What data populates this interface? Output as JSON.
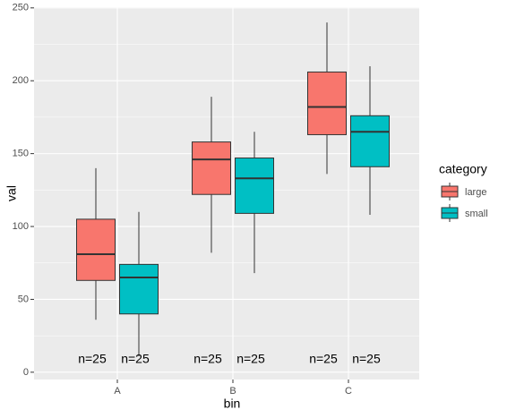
{
  "chart_data": {
    "type": "boxplot",
    "x_label": "bin",
    "y_label": "val",
    "categories": [
      "A",
      "B",
      "C"
    ],
    "ylim": [
      -5,
      250.5
    ],
    "yticks": [
      0,
      50,
      100,
      150,
      200,
      250
    ],
    "grid": true,
    "legend_title": "category",
    "legend_position": "right",
    "series": [
      {
        "name": "large",
        "color": "#F8766D",
        "boxes": [
          {
            "min": 36,
            "q1": 63,
            "median": 81,
            "q3": 105,
            "max": 140
          },
          {
            "min": 82,
            "q1": 122,
            "median": 146,
            "q3": 158,
            "max": 189
          },
          {
            "min": 136,
            "q1": 163,
            "median": 182,
            "q3": 206,
            "max": 240
          }
        ],
        "labels": [
          "n=25",
          "n=25",
          "n=25"
        ]
      },
      {
        "name": "small",
        "color": "#00BFC4",
        "boxes": [
          {
            "min": 11,
            "q1": 40,
            "median": 65,
            "q3": 74,
            "max": 110
          },
          {
            "min": 68,
            "q1": 109,
            "median": 133,
            "q3": 147,
            "max": 165
          },
          {
            "min": 108,
            "q1": 141,
            "median": 165,
            "q3": 176,
            "max": 210
          }
        ],
        "labels": [
          "n=25",
          "n=25",
          "n=25"
        ]
      }
    ]
  }
}
